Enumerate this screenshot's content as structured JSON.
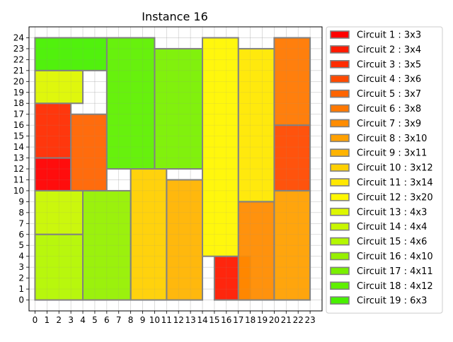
{
  "chart_data": {
    "type": "packing",
    "title": "Instance 16",
    "xlabel": "",
    "ylabel": "",
    "xlim": [
      -0.5,
      24
    ],
    "ylim": [
      -1,
      25
    ],
    "xticks": [
      0,
      1,
      2,
      3,
      4,
      5,
      6,
      7,
      8,
      9,
      10,
      11,
      12,
      13,
      14,
      15,
      16,
      17,
      18,
      19,
      20,
      21,
      22,
      23
    ],
    "yticks": [
      0,
      1,
      2,
      3,
      4,
      5,
      6,
      7,
      8,
      9,
      10,
      11,
      12,
      13,
      14,
      15,
      16,
      17,
      18,
      19,
      20,
      21,
      22,
      23,
      24
    ],
    "grid": true,
    "legend_position": "right",
    "edge_color": "#808080",
    "circuits": [
      {
        "label": "Circuit 1 : 3x3",
        "color": "#ff0000",
        "x": 0,
        "y": 10,
        "w": 3,
        "h": 3
      },
      {
        "label": "Circuit 2 : 3x4",
        "color": "#ff1a00",
        "x": 15,
        "y": 0,
        "w": 3,
        "h": 4
      },
      {
        "label": "Circuit 3 : 3x5",
        "color": "#ff2c00",
        "x": 0,
        "y": 13,
        "w": 3,
        "h": 5
      },
      {
        "label": "Circuit 4 : 3x6",
        "color": "#ff4a00",
        "x": 20,
        "y": 10,
        "w": 3,
        "h": 6
      },
      {
        "label": "Circuit 5 : 3x7",
        "color": "#ff6400",
        "x": 3,
        "y": 10,
        "w": 3,
        "h": 7
      },
      {
        "label": "Circuit 6 : 3x8",
        "color": "#ff7800",
        "x": 20,
        "y": 16,
        "w": 3,
        "h": 8
      },
      {
        "label": "Circuit 7 : 3x9",
        "color": "#ff8c00",
        "x": 17,
        "y": 0,
        "w": 3,
        "h": 9
      },
      {
        "label": "Circuit 8 : 3x10",
        "color": "#ffa000",
        "x": 20,
        "y": 0,
        "w": 3,
        "h": 10
      },
      {
        "label": "Circuit 9 : 3x11",
        "color": "#ffb400",
        "x": 11,
        "y": 0,
        "w": 3,
        "h": 11
      },
      {
        "label": "Circuit 10 : 3x12",
        "color": "#ffd000",
        "x": 8,
        "y": 0,
        "w": 3,
        "h": 12
      },
      {
        "label": "Circuit 11 : 3x14",
        "color": "#ffe800",
        "x": 17,
        "y": 9,
        "w": 3,
        "h": 14
      },
      {
        "label": "Circuit 12 : 3x20",
        "color": "#fff700",
        "x": 14,
        "y": 4,
        "w": 3,
        "h": 20
      },
      {
        "label": "Circuit 13 : 4x3",
        "color": "#ddf700",
        "x": 0,
        "y": 18,
        "w": 4,
        "h": 3
      },
      {
        "label": "Circuit 14 : 4x4",
        "color": "#c8f700",
        "x": 0,
        "y": 6,
        "w": 4,
        "h": 4
      },
      {
        "label": "Circuit 15 : 4x6",
        "color": "#b4f700",
        "x": 0,
        "y": 0,
        "w": 4,
        "h": 6
      },
      {
        "label": "Circuit 16 : 4x10",
        "color": "#96f000",
        "x": 4,
        "y": 0,
        "w": 4,
        "h": 10
      },
      {
        "label": "Circuit 17 : 4x11",
        "color": "#7af000",
        "x": 10,
        "y": 12,
        "w": 4,
        "h": 11
      },
      {
        "label": "Circuit 18 : 4x12",
        "color": "#5ff000",
        "x": 6,
        "y": 12,
        "w": 4,
        "h": 12
      },
      {
        "label": "Circuit 19 : 6x3",
        "color": "#48f000",
        "x": 0,
        "y": 21,
        "w": 6,
        "h": 3
      }
    ]
  }
}
